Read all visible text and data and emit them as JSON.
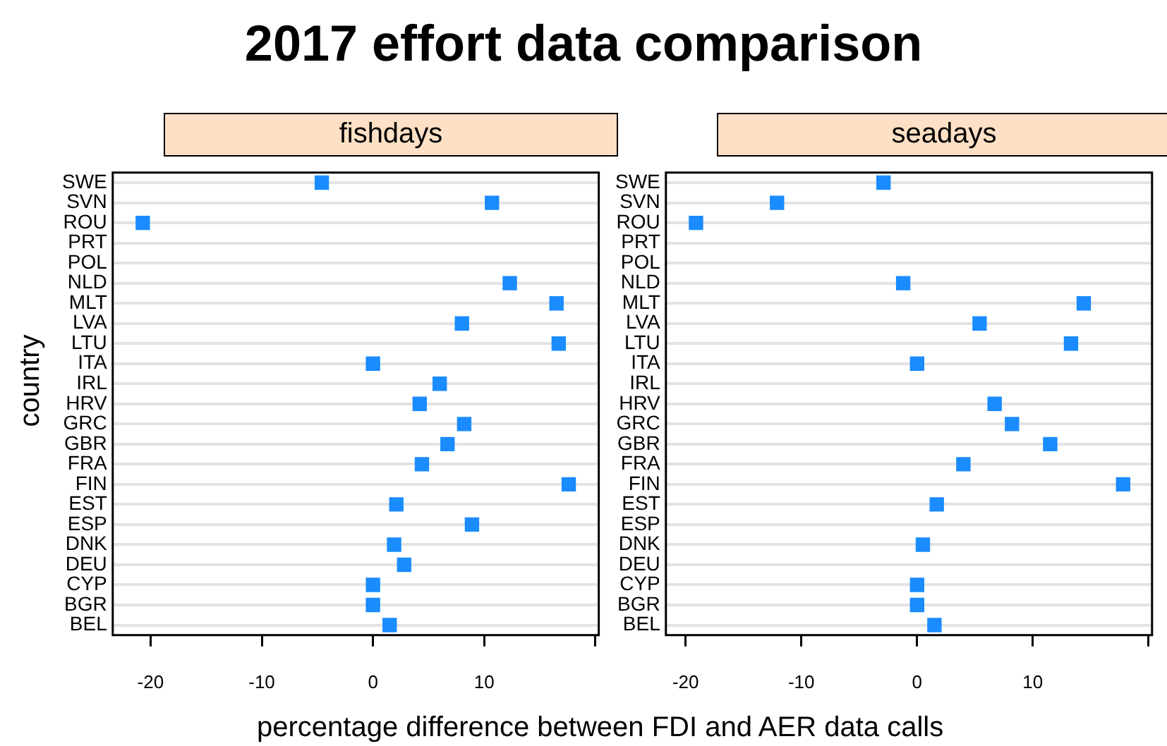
{
  "chart_data": [
    {
      "type": "scatter",
      "title": "2017 effort data comparison",
      "subtitle": "fishdays",
      "xlabel": "percentage difference between FDI and AER data calls",
      "ylabel": "country",
      "orientation": "horizontal",
      "marker": "square",
      "grid": "y",
      "legend": false,
      "categories": [
        "SWE",
        "SVN",
        "ROU",
        "PRT",
        "POL",
        "NLD",
        "MLT",
        "LVA",
        "LTU",
        "ITA",
        "IRL",
        "HRV",
        "GRC",
        "GBR",
        "FRA",
        "FIN",
        "EST",
        "ESP",
        "DNK",
        "DEU",
        "CYP",
        "BGR",
        "BEL"
      ],
      "series": [
        {
          "color": "#1a8cff",
          "values": [
            -4.6,
            10.7,
            -20.7,
            null,
            null,
            12.3,
            16.5,
            8.0,
            16.7,
            0,
            6.0,
            4.2,
            8.2,
            6.7,
            4.4,
            17.6,
            2.1,
            8.9,
            1.9,
            2.8,
            0,
            0,
            1.5
          ]
        }
      ],
      "xlim": [
        -23.4,
        20.3
      ],
      "xticks": [
        -20,
        -10,
        0,
        10,
        {
          "value": 20,
          "label": null
        }
      ]
    },
    {
      "type": "scatter",
      "subtitle": "seadays",
      "orientation": "horizontal",
      "marker": "square",
      "grid": "y",
      "legend": false,
      "categories": [
        "SWE",
        "SVN",
        "ROU",
        "PRT",
        "POL",
        "NLD",
        "MLT",
        "LVA",
        "LTU",
        "ITA",
        "IRL",
        "HRV",
        "GRC",
        "GBR",
        "FRA",
        "FIN",
        "EST",
        "ESP",
        "DNK",
        "DEU",
        "CYP",
        "BGR",
        "BEL"
      ],
      "series": [
        {
          "color": "#1a8cff",
          "values": [
            -2.9,
            -12.1,
            -19.1,
            null,
            null,
            -1.2,
            14.4,
            5.4,
            13.3,
            0,
            null,
            6.7,
            8.2,
            11.5,
            4.0,
            17.8,
            1.7,
            null,
            0.5,
            null,
            0,
            0,
            1.5
          ]
        }
      ],
      "xlim": [
        -21.7,
        20.3
      ],
      "xticks": [
        -20,
        -10,
        0,
        10,
        {
          "value": 20,
          "label": null
        }
      ]
    }
  ]
}
